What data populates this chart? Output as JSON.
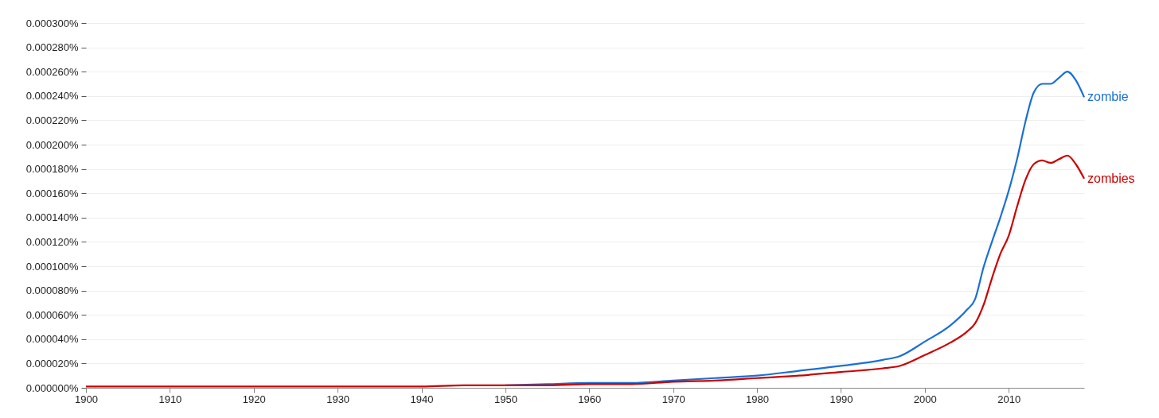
{
  "chart_data": {
    "type": "line",
    "x": [
      1900,
      1910,
      1920,
      1925,
      1930,
      1935,
      1940,
      1945,
      1950,
      1955,
      1960,
      1965,
      1970,
      1975,
      1980,
      1985,
      1990,
      1995,
      1997,
      2000,
      2003,
      2005,
      2006,
      2007,
      2008,
      2009,
      2010,
      2011,
      2012,
      2013,
      2014,
      2015,
      2016,
      2017,
      2018,
      2019
    ],
    "series": [
      {
        "name": "zombie",
        "color": "#1a6fd6",
        "values": [
          null,
          null,
          null,
          null,
          null,
          null,
          null,
          null,
          2e-06,
          3e-06,
          4e-06,
          4e-06,
          6e-06,
          8e-06,
          1e-05,
          1.4e-05,
          1.8e-05,
          2.3e-05,
          2.6e-05,
          3.8e-05,
          5.1e-05,
          6.4e-05,
          7.3e-05,
          9.9e-05,
          0.00012,
          0.00014,
          0.000162,
          0.000188,
          0.000219,
          0.000243,
          0.00025,
          0.00025,
          0.000255,
          0.00026,
          0.000253,
          0.000239
        ]
      },
      {
        "name": "zombies",
        "color": "#cc0000",
        "values": [
          1e-06,
          1e-06,
          1e-06,
          1e-06,
          1e-06,
          1e-06,
          1e-06,
          2e-06,
          2e-06,
          2e-06,
          3e-06,
          3e-06,
          5e-06,
          6e-06,
          8e-06,
          1e-05,
          1.3e-05,
          1.6e-05,
          1.8e-05,
          2.7e-05,
          3.7e-05,
          4.6e-05,
          5.3e-05,
          6.8e-05,
          9e-05,
          0.00011,
          0.000125,
          0.000149,
          0.000171,
          0.000184,
          0.000187,
          0.000185,
          0.000188,
          0.000191,
          0.000184,
          0.000172
        ]
      }
    ],
    "xlim": [
      1900,
      2019
    ],
    "xticks": [
      1900,
      1910,
      1920,
      1930,
      1940,
      1950,
      1960,
      1970,
      1980,
      1990,
      2000,
      2010
    ],
    "ylim": [
      0,
      0.0003
    ],
    "yticks": [
      {
        "value": 0,
        "label": "0.000000%"
      },
      {
        "value": 2e-05,
        "label": "0.000020%"
      },
      {
        "value": 4e-05,
        "label": "0.000040%"
      },
      {
        "value": 6e-05,
        "label": "0.000060%"
      },
      {
        "value": 8e-05,
        "label": "0.000080%"
      },
      {
        "value": 0.0001,
        "label": "0.000100%"
      },
      {
        "value": 0.00012,
        "label": "0.000120%"
      },
      {
        "value": 0.00014,
        "label": "0.000140%"
      },
      {
        "value": 0.00016,
        "label": "0.000160%"
      },
      {
        "value": 0.00018,
        "label": "0.000180%"
      },
      {
        "value": 0.0002,
        "label": "0.000200%"
      },
      {
        "value": 0.00022,
        "label": "0.000220%"
      },
      {
        "value": 0.00024,
        "label": "0.000240%"
      },
      {
        "value": 0.00026,
        "label": "0.000260%"
      },
      {
        "value": 0.00028,
        "label": "0.000280%"
      },
      {
        "value": 0.0003,
        "label": "0.000300%"
      }
    ],
    "grid": "y",
    "legend": false,
    "marker": "none",
    "line_style": "solid"
  }
}
